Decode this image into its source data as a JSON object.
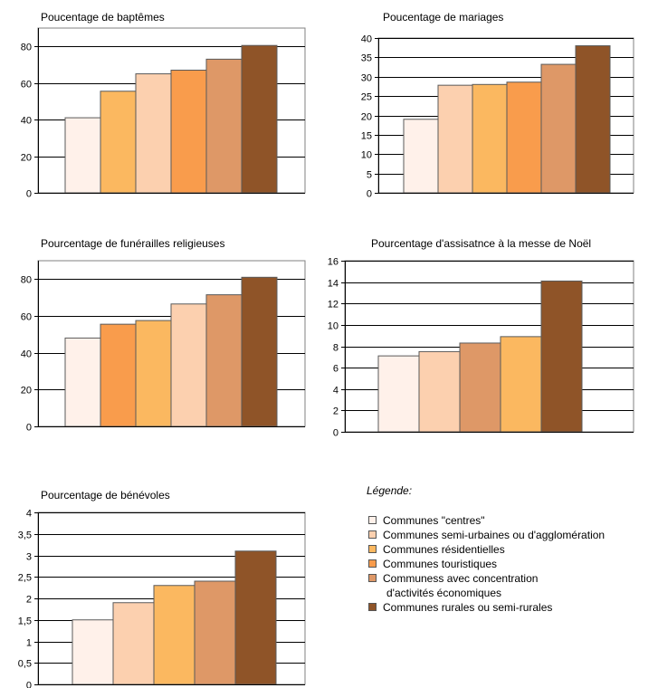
{
  "legend": {
    "title": "Légende:",
    "items": [
      {
        "label": "Communes \"centres\"",
        "color": "#FFF1EA"
      },
      {
        "label": "Communes semi-urbaines ou d'agglomération",
        "color": "#FCD0AF"
      },
      {
        "label": "Communes résidentielles",
        "color": "#FBB860"
      },
      {
        "label": "Communes touristiques",
        "color": "#F99C4C"
      },
      {
        "label": "Communess avec concentration",
        "label_cont": "d'activités économiques",
        "color": "#DE9867"
      },
      {
        "label": "Communes rurales ou semi-rurales",
        "color": "#8F5428"
      }
    ]
  },
  "chart_data": [
    {
      "type": "bar",
      "title": "Poucentage de baptêmes",
      "categories": [
        "Communes \"centres\"",
        "Communes résidentielles",
        "Communes semi-urbaines ou d'agglomération",
        "Communes touristiques",
        "Communess avec concentration d'activités économiques",
        "Communes rurales ou semi-rurales"
      ],
      "values": [
        41,
        55.5,
        65,
        67,
        73,
        80.5
      ],
      "colors": [
        "#FFF1EA",
        "#FBB860",
        "#FCD0AF",
        "#F99C4C",
        "#DE9867",
        "#8F5428"
      ],
      "ylim": [
        0,
        90
      ],
      "yticks": [
        "0",
        "20",
        "40",
        "60",
        "80"
      ],
      "ytick_values": [
        0,
        20,
        40,
        60,
        80
      ]
    },
    {
      "type": "bar",
      "title": "Poucentage de mariages",
      "categories": [
        "Communes \"centres\"",
        "Communes semi-urbaines ou d'agglomération",
        "Communes résidentielles",
        "Communes touristiques",
        "Communess avec concentration d'activités économiques",
        "Communes rurales ou semi-rurales"
      ],
      "values": [
        19,
        27.8,
        28,
        28.6,
        33.2,
        38
      ],
      "colors": [
        "#FFF1EA",
        "#FCD0AF",
        "#FBB860",
        "#F99C4C",
        "#DE9867",
        "#8F5428"
      ],
      "ylim": [
        0,
        40
      ],
      "yticks": [
        "0",
        "5",
        "10",
        "15",
        "20",
        "25",
        "30",
        "35",
        "40"
      ],
      "ytick_values": [
        0,
        5,
        10,
        15,
        20,
        25,
        30,
        35,
        40
      ]
    },
    {
      "type": "bar",
      "title": "Pourcentage de funérailles religieuses",
      "categories": [
        "Communes \"centres\"",
        "Communes touristiques",
        "Communes résidentielles",
        "Communes semi-urbaines ou d'agglomération",
        "Communess avec concentration d'activités économiques",
        "Communes rurales ou semi-rurales"
      ],
      "values": [
        48,
        55.5,
        57.5,
        66.5,
        71.5,
        81
      ],
      "colors": [
        "#FFF1EA",
        "#F99C4C",
        "#FBB860",
        "#FCD0AF",
        "#DE9867",
        "#8F5428"
      ],
      "ylim": [
        0,
        90
      ],
      "yticks": [
        "0",
        "20",
        "40",
        "60",
        "80"
      ],
      "ytick_values": [
        0,
        20,
        40,
        60,
        80
      ]
    },
    {
      "type": "bar",
      "title": "Pourcentage d'assisatnce à la messe de Noël",
      "categories": [
        "Communes \"centres\"",
        "Communes semi-urbaines ou d'agglomération",
        "Communess avec concentration d'activités économiques",
        "Communes résidentielles",
        "Communes rurales ou semi-rurales"
      ],
      "values": [
        7.1,
        7.5,
        8.3,
        8.9,
        14.1
      ],
      "colors": [
        "#FFF1EA",
        "#FCD0AF",
        "#DE9867",
        "#FBB860",
        "#8F5428"
      ],
      "ylim": [
        0,
        16
      ],
      "yticks": [
        "0",
        "2",
        "4",
        "6",
        "8",
        "10",
        "12",
        "14",
        "16"
      ],
      "ytick_values": [
        0,
        2,
        4,
        6,
        8,
        10,
        12,
        14,
        16
      ]
    },
    {
      "type": "bar",
      "title": "Pourcentage de bénévoles",
      "categories": [
        "Communes \"centres\"",
        "Communes semi-urbaines ou d'agglomération",
        "Communes résidentielles",
        "Communess avec concentration d'activités économiques",
        "Communes rurales ou semi-rurales"
      ],
      "values": [
        1.5,
        1.9,
        2.3,
        2.4,
        3.1
      ],
      "colors": [
        "#FFF1EA",
        "#FCD0AF",
        "#FBB860",
        "#DE9867",
        "#8F5428"
      ],
      "ylim": [
        0,
        4
      ],
      "yticks": [
        "0",
        "0,5",
        "1",
        "1,5",
        "2",
        "2,5",
        "3",
        "3,5",
        "4"
      ],
      "ytick_values": [
        0,
        0.5,
        1,
        1.5,
        2,
        2.5,
        3,
        3.5,
        4
      ]
    }
  ]
}
